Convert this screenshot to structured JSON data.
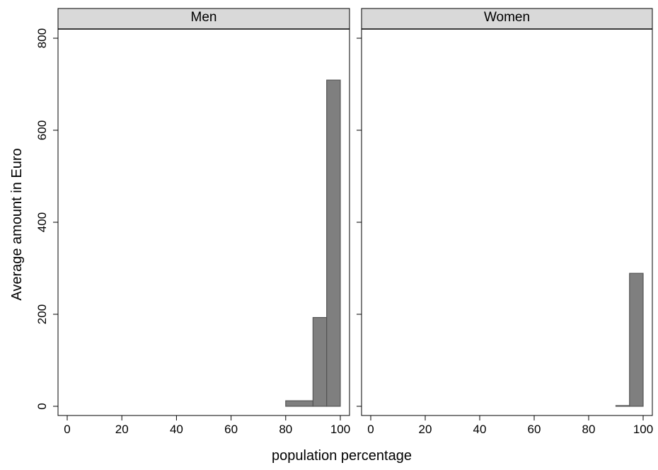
{
  "chart_data": {
    "type": "bar",
    "histogram": true,
    "title": "",
    "xlabel": "population percentage",
    "ylabel": "Average amount in Euro",
    "xlim": [
      0,
      100
    ],
    "ylim": [
      0,
      800
    ],
    "x_ticks": [
      0,
      20,
      40,
      60,
      80,
      100
    ],
    "y_ticks": [
      0,
      200,
      400,
      600,
      800
    ],
    "grid": false,
    "legend": "none",
    "bar_color": "#7f7f7f",
    "bar_edge_color": "#555555",
    "strip_color": "#d9d9d9",
    "panels": [
      {
        "name": "Men",
        "bins": [
          {
            "x0": 80,
            "x1": 90,
            "value": 12
          },
          {
            "x0": 90,
            "x1": 95,
            "value": 193
          },
          {
            "x0": 95,
            "x1": 100,
            "value": 709
          }
        ]
      },
      {
        "name": "Women",
        "bins": [
          {
            "x0": 90,
            "x1": 95,
            "value": 1
          },
          {
            "x0": 95,
            "x1": 100,
            "value": 289
          }
        ]
      }
    ]
  }
}
